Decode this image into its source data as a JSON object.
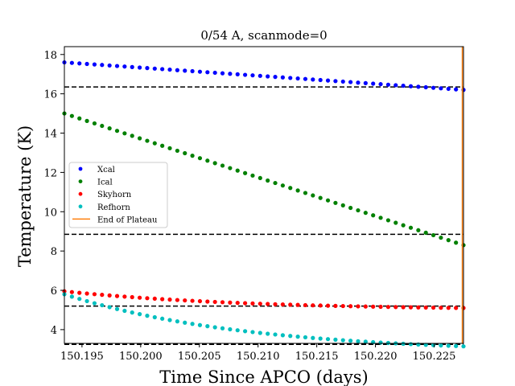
{
  "chart_data": {
    "type": "scatter",
    "title": "0/54 A, scanmode=0",
    "xlabel": "Time Since APCO (days)",
    "ylabel": "Temperature (K)",
    "xlim": [
      150.1935,
      150.2275
    ],
    "ylim": [
      3.3,
      18.4
    ],
    "xticks": [
      "150.195",
      "150.200",
      "150.205",
      "150.210",
      "150.215",
      "150.220",
      "150.225"
    ],
    "xtick_values": [
      150.195,
      150.2,
      150.205,
      150.21,
      150.215,
      150.22,
      150.225
    ],
    "yticks": [
      "4",
      "6",
      "8",
      "10",
      "12",
      "14",
      "16",
      "18"
    ],
    "ytick_values": [
      4,
      6,
      8,
      10,
      12,
      14,
      16,
      18
    ],
    "x_start": 150.1935,
    "x_end": 150.2275,
    "points_per_series": 54,
    "series": [
      {
        "name": "Xcal",
        "color": "#0000ff",
        "start": 17.6,
        "end": 16.2,
        "curve": "linear"
      },
      {
        "name": "Ical",
        "color": "#008000",
        "start": 15.0,
        "end": 8.3,
        "curve": "linear"
      },
      {
        "name": "Skyhorn",
        "color": "#ff0000",
        "start": 5.95,
        "end": 5.1,
        "curve": "decay"
      },
      {
        "name": "Refhorn",
        "color": "#00bfbf",
        "start": 5.8,
        "end": 3.15,
        "curve": "decay"
      }
    ],
    "reference_lines": [
      {
        "y": 16.35,
        "style": "dashed",
        "color": "#000000"
      },
      {
        "y": 8.85,
        "style": "dashed",
        "color": "#000000"
      },
      {
        "y": 5.2,
        "style": "dashed",
        "color": "#000000"
      },
      {
        "y": 3.25,
        "style": "dashed",
        "color": "#000000"
      }
    ],
    "end_of_plateau": {
      "name": "End of Plateau",
      "x": 150.2274,
      "color": "#ff7f0e"
    },
    "legend": {
      "placement": "center-left"
    },
    "grid": false
  }
}
